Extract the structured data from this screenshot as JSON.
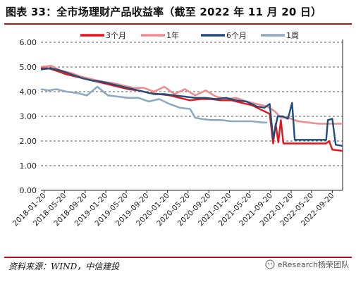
{
  "title": "图表 33：全市场理财产品收益率（截至 2022 年 11 月 20 日）",
  "source": "资料来源：WIND，中信建投",
  "watermark": "eResearch杨荣团队",
  "colors": {
    "rule": "#b5121b",
    "series": [
      "#e3161e",
      "#ef8c8f",
      "#1f4e7a",
      "#8faac0"
    ],
    "grid": "#222222"
  },
  "chart_data": {
    "type": "line",
    "title": "图表 33：全市场理财产品收益率（截至 2022 年 11 月 20 日）",
    "xlabel": "",
    "ylabel": "",
    "ylim": [
      0,
      6
    ],
    "yticks": [
      "0.00",
      "1.00",
      "2.00",
      "3.00",
      "4.00",
      "5.00",
      "6.00"
    ],
    "xticks": [
      "2018-01-20",
      "2018-05-20",
      "2018-09-20",
      "2019-01-20",
      "2019-05-20",
      "2019-09-20",
      "2020-01-20",
      "2020-05-20",
      "2020-09-20",
      "2021-01-20",
      "2021-05-20",
      "2021-09-20",
      "2022-01-20",
      "2022-05-20",
      "2022-09-20"
    ],
    "xlim": [
      "2018-01-01",
      "2022-11-20"
    ],
    "grid": "horizontal dashed",
    "legend": "top",
    "series": [
      {
        "name": "3个月",
        "x": [
          "2018-01-01",
          "2018-02-15",
          "2018-04-01",
          "2018-06-01",
          "2018-08-01",
          "2018-10-01",
          "2018-12-01",
          "2019-02-01",
          "2019-04-01",
          "2019-06-01",
          "2019-08-01",
          "2019-10-01",
          "2019-12-01",
          "2020-02-01",
          "2020-04-01",
          "2020-06-01",
          "2020-08-01",
          "2020-10-01",
          "2020-12-01",
          "2021-02-01",
          "2021-04-01",
          "2021-06-01",
          "2021-08-01",
          "2021-09-15",
          "2021-10-05",
          "2021-10-20",
          "2021-11-05",
          "2021-11-20",
          "2021-12-05",
          "2022-01-20",
          "2022-03-01",
          "2022-05-01",
          "2022-07-01",
          "2022-08-15",
          "2022-09-01",
          "2022-09-20",
          "2022-11-20"
        ],
        "values": [
          4.95,
          4.95,
          4.85,
          4.7,
          4.6,
          4.5,
          4.4,
          4.3,
          4.2,
          4.1,
          4.05,
          3.95,
          3.9,
          3.85,
          3.75,
          3.65,
          3.7,
          3.7,
          3.65,
          3.65,
          3.55,
          3.45,
          3.25,
          3.1,
          1.9,
          2.7,
          1.95,
          2.85,
          1.9,
          1.9,
          1.9,
          1.9,
          1.9,
          1.9,
          2.0,
          1.65,
          1.6
        ]
      },
      {
        "name": "1年",
        "x": [
          "2018-01-01",
          "2018-03-01",
          "2018-05-01",
          "2018-07-01",
          "2018-09-01",
          "2018-11-01",
          "2019-01-01",
          "2019-03-01",
          "2019-05-01",
          "2019-07-01",
          "2019-09-01",
          "2019-11-01",
          "2020-01-01",
          "2020-03-01",
          "2020-05-01",
          "2020-07-01",
          "2020-09-01",
          "2020-11-01",
          "2021-01-01",
          "2021-03-01",
          "2021-05-01",
          "2021-07-01",
          "2021-09-01",
          "2021-10-15",
          "2021-11-20",
          "2022-01-01",
          "2022-03-01",
          "2022-05-01",
          "2022-07-01",
          "2022-09-01",
          "2022-09-20",
          "2022-11-20"
        ],
        "values": [
          5.0,
          5.05,
          4.85,
          4.75,
          4.6,
          4.5,
          4.4,
          4.35,
          4.25,
          4.15,
          4.15,
          4.0,
          4.2,
          3.9,
          4.1,
          3.85,
          4.05,
          3.8,
          3.7,
          3.75,
          3.6,
          3.5,
          3.4,
          3.2,
          2.95,
          2.95,
          2.8,
          2.75,
          2.7,
          2.7,
          2.7,
          2.7
        ]
      },
      {
        "name": "6个月",
        "x": [
          "2018-01-01",
          "2018-03-01",
          "2018-05-01",
          "2018-07-01",
          "2018-09-01",
          "2018-11-01",
          "2019-01-01",
          "2019-03-01",
          "2019-05-01",
          "2019-07-01",
          "2019-09-01",
          "2019-11-01",
          "2020-01-01",
          "2020-03-01",
          "2020-05-01",
          "2020-07-01",
          "2020-09-01",
          "2020-11-01",
          "2021-01-01",
          "2021-03-01",
          "2021-05-01",
          "2021-07-01",
          "2021-08-15",
          "2021-09-15",
          "2021-10-05",
          "2021-11-01",
          "2021-12-01",
          "2022-01-01",
          "2022-01-25",
          "2022-02-10",
          "2022-03-01",
          "2022-05-01",
          "2022-07-01",
          "2022-08-15",
          "2022-08-25",
          "2022-09-20",
          "2022-10-10",
          "2022-11-20"
        ],
        "values": [
          4.9,
          4.95,
          4.85,
          4.7,
          4.55,
          4.45,
          4.4,
          4.3,
          4.2,
          4.1,
          4.0,
          3.9,
          3.9,
          3.85,
          3.8,
          3.75,
          3.75,
          3.7,
          3.75,
          3.65,
          3.6,
          3.4,
          3.35,
          3.5,
          2.1,
          3.0,
          3.0,
          2.9,
          3.55,
          2.05,
          2.05,
          2.05,
          2.05,
          2.05,
          2.85,
          2.9,
          1.85,
          1.8
        ]
      },
      {
        "name": "1周",
        "x": [
          "2018-01-01",
          "2018-02-15",
          "2018-04-01",
          "2018-06-01",
          "2018-08-01",
          "2018-10-01",
          "2018-12-01",
          "2019-02-01",
          "2019-04-01",
          "2019-06-01",
          "2019-08-01",
          "2019-10-01",
          "2019-12-01",
          "2020-02-01",
          "2020-04-01",
          "2020-06-01",
          "2020-07-01",
          "2020-08-01",
          "2020-10-01",
          "2020-12-01",
          "2021-02-01",
          "2021-04-01",
          "2021-06-01",
          "2021-08-01",
          "2021-09-01"
        ],
        "values": [
          4.1,
          4.05,
          4.1,
          4.0,
          3.95,
          3.85,
          4.2,
          3.85,
          3.8,
          3.75,
          3.75,
          3.6,
          3.7,
          3.5,
          3.35,
          3.3,
          2.95,
          2.9,
          2.85,
          2.85,
          2.8,
          2.8,
          2.8,
          2.75,
          2.75
        ]
      }
    ]
  }
}
